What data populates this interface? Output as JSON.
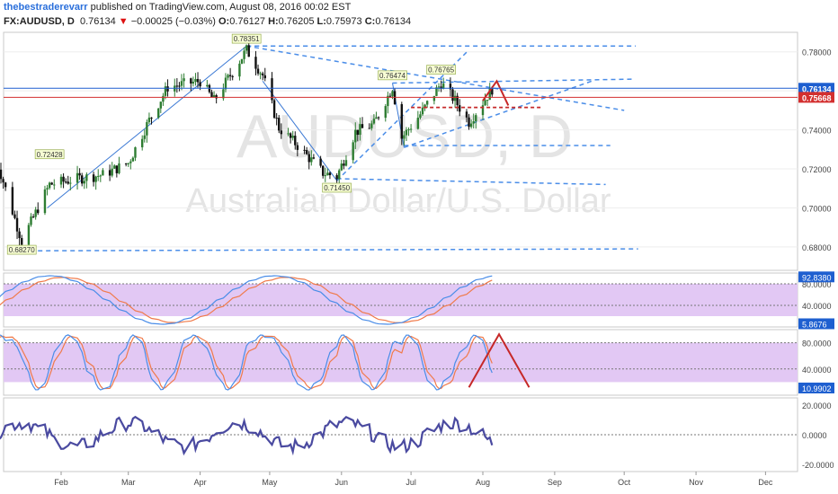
{
  "header": {
    "author": "thebestraderevarr",
    "published": "published on TradingView.com, August 08, 2016 00:02 EST",
    "symbol": "FX:AUDUSD, D",
    "last": "0.76134",
    "change_arrow": "▼",
    "change": "−0.00025 (−0.03%)",
    "o_label": "O:",
    "o": "0.76127",
    "h_label": "H:",
    "h": "0.76205",
    "l_label": "L:",
    "l": "0.75973",
    "c_label": "C:",
    "c": "0.76134"
  },
  "watermark": {
    "symbol": "AUDUSD, D",
    "name": "Australian Dollar/U.S. Dollar"
  },
  "colors": {
    "up": "#2e7d32",
    "down": "#111111",
    "trend": "#3a78d4",
    "red": "#c62828",
    "band": "#e2c8f4",
    "blue_line": "#4a8de8",
    "orange_line": "#f07a4a",
    "purple_line": "#4a4aa0"
  },
  "chart_data": [
    {
      "type": "candlestick",
      "ylim": [
        0.668,
        0.79
      ],
      "x_tick_labels": [
        "Feb",
        "Mar",
        "Apr",
        "May",
        "Jun",
        "Jul",
        "Aug",
        "Sep",
        "Oct",
        "Nov",
        "Dec"
      ],
      "y_tick_labels": [
        "0.78000",
        "0.76000",
        "0.74000",
        "0.72000",
        "0.70000",
        "0.68000"
      ],
      "y_ticks": [
        0.78,
        0.76,
        0.74,
        0.72,
        0.7,
        0.68
      ],
      "price_tags": [
        {
          "label": "0.76134",
          "value": 0.76134,
          "color": "#1e5fd0"
        },
        {
          "label": "0.75668",
          "value": 0.75668,
          "color": "#d32f2f"
        }
      ],
      "annotations": [
        {
          "label": "0.78351",
          "date": "Apr 21",
          "value": 0.78351
        },
        {
          "label": "0.72428",
          "date": "Jan 27",
          "value": 0.72428
        },
        {
          "label": "0.68270",
          "date": "Jan 15",
          "value": 0.6827
        },
        {
          "label": "0.71450",
          "date": "May 30",
          "value": 0.7145
        },
        {
          "label": "0.76474",
          "date": "Jun 23",
          "value": 0.76474
        },
        {
          "label": "0.76765",
          "date": "Jul 14",
          "value": 0.76765
        }
      ],
      "close_series_key_points": [
        [
          "Jan 04",
          0.725
        ],
        [
          "Jan 15",
          0.683
        ],
        [
          "Jan 27",
          0.712
        ],
        [
          "Feb 08",
          0.715
        ],
        [
          "Feb 19",
          0.717
        ],
        [
          "Mar 01",
          0.723
        ],
        [
          "Mar 10",
          0.745
        ],
        [
          "Mar 18",
          0.762
        ],
        [
          "Apr 01",
          0.765
        ],
        [
          "Apr 07",
          0.755
        ],
        [
          "Apr 21",
          0.781
        ],
        [
          "Apr 28",
          0.768
        ],
        [
          "May 05",
          0.741
        ],
        [
          "May 13",
          0.732
        ],
        [
          "May 24",
          0.718
        ],
        [
          "May 30",
          0.716
        ],
        [
          "Jun 07",
          0.739
        ],
        [
          "Jun 15",
          0.743
        ],
        [
          "Jun 23",
          0.762
        ],
        [
          "Jun 27",
          0.736
        ],
        [
          "Jul 05",
          0.748
        ],
        [
          "Jul 14",
          0.764
        ],
        [
          "Jul 20",
          0.755
        ],
        [
          "Jul 26",
          0.744
        ],
        [
          "Aug 05",
          0.761
        ]
      ]
    },
    {
      "type": "line",
      "name": "oscillator-1",
      "ylim": [
        0,
        100
      ],
      "y_tick_labels": [
        "80.0000",
        "40.0000"
      ],
      "y_ticks": [
        80,
        40
      ],
      "level_tags": [
        {
          "label": "92.8380",
          "value": 92.838
        },
        {
          "label": "5.8676",
          "value": 5.8676
        }
      ]
    },
    {
      "type": "line",
      "name": "oscillator-2",
      "ylim": [
        0,
        100
      ],
      "y_tick_labels": [
        "80.0000",
        "40.0000"
      ],
      "y_ticks": [
        80,
        40
      ],
      "level_tags": [
        {
          "label": "10.9902",
          "value": 10.9902
        }
      ]
    },
    {
      "type": "line",
      "name": "oscillator-3",
      "ylim": [
        -25,
        25
      ],
      "y_tick_labels": [
        "20.0000",
        "0.0000",
        "-20.0000"
      ],
      "y_ticks": [
        20,
        0,
        -20
      ]
    }
  ]
}
